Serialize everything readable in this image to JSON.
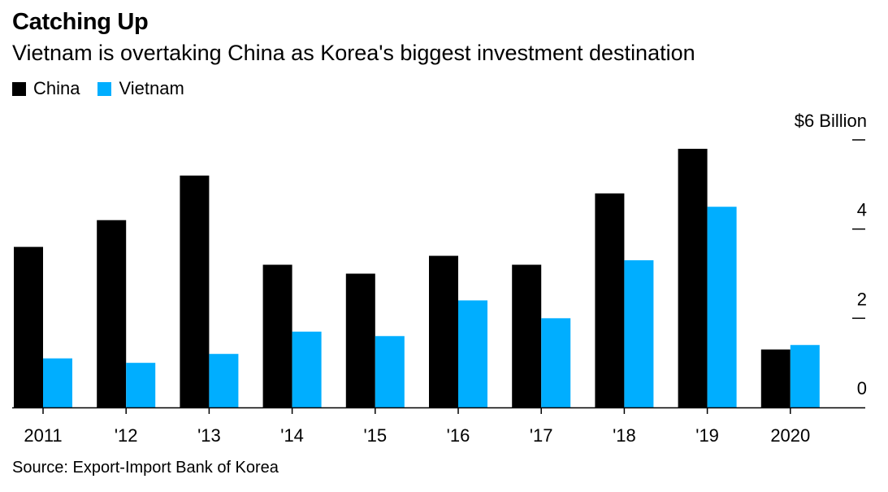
{
  "title": "Catching Up",
  "subtitle": "Vietnam is overtaking China as Korea's biggest investment destination",
  "source": "Source: Export-Import Bank of Korea",
  "chart_data": {
    "type": "bar",
    "categories": [
      "2011",
      "'12",
      "'13",
      "'14",
      "'15",
      "'16",
      "'17",
      "'18",
      "'19",
      "2020"
    ],
    "series": [
      {
        "name": "China",
        "color": "#000000",
        "values": [
          3.6,
          4.2,
          5.2,
          3.2,
          3.0,
          3.4,
          3.2,
          4.8,
          5.8,
          1.3
        ]
      },
      {
        "name": "Vietnam",
        "color": "#00aeff",
        "values": [
          1.1,
          1.0,
          1.2,
          1.7,
          1.6,
          2.4,
          2.0,
          3.3,
          4.5,
          1.4
        ]
      }
    ],
    "yticks": [
      {
        "value": 0,
        "label": "0"
      },
      {
        "value": 2,
        "label": "2"
      },
      {
        "value": 4,
        "label": "4"
      },
      {
        "value": 6,
        "label": "$6 Billion"
      }
    ],
    "ylim": [
      0,
      6
    ],
    "xlabel": "",
    "ylabel": "",
    "grid": false,
    "legend_position": "top-left"
  }
}
